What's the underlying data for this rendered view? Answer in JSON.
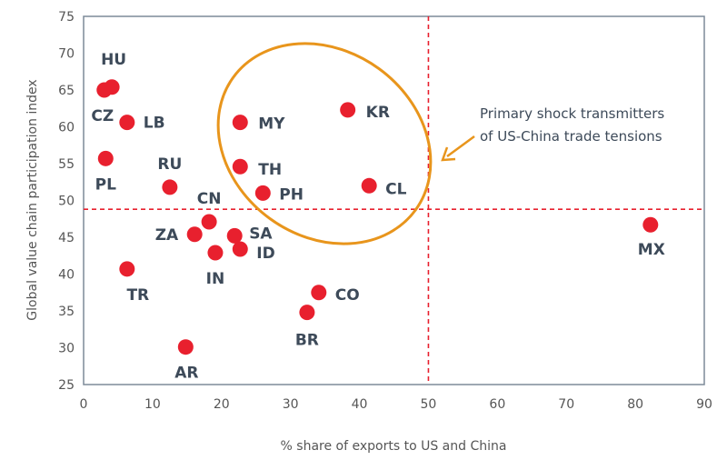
{
  "chart_data": {
    "type": "scatter",
    "title": "",
    "xlabel": "% share of exports to US and China",
    "ylabel": "Global value chain participation index",
    "xlim": [
      0,
      90
    ],
    "ylim": [
      25,
      75
    ],
    "xticks": [
      0,
      10,
      20,
      30,
      40,
      50,
      60,
      70,
      80,
      90
    ],
    "yticks": [
      25,
      30,
      35,
      40,
      45,
      50,
      55,
      60,
      65,
      70,
      75
    ],
    "grid": false,
    "point_color": "#e8202e",
    "reference_line_color": "#e8202e",
    "highlight_color": "#e8951c",
    "reference_lines": {
      "x": 50,
      "y": 48.8
    },
    "points": [
      {
        "label": "HU",
        "x": 4.1,
        "y": 65.4
      },
      {
        "label": "CZ",
        "x": 3.0,
        "y": 65.0
      },
      {
        "label": "LB",
        "x": 6.3,
        "y": 60.6
      },
      {
        "label": "PL",
        "x": 3.2,
        "y": 55.7
      },
      {
        "label": "RU",
        "x": 12.5,
        "y": 51.8
      },
      {
        "label": "CN",
        "x": 18.2,
        "y": 47.1
      },
      {
        "label": "ZA",
        "x": 16.1,
        "y": 45.4
      },
      {
        "label": "SA",
        "x": 21.9,
        "y": 45.2
      },
      {
        "label": "IN",
        "x": 19.1,
        "y": 42.9
      },
      {
        "label": "ID",
        "x": 22.7,
        "y": 43.4
      },
      {
        "label": "TR",
        "x": 6.3,
        "y": 40.7
      },
      {
        "label": "AR",
        "x": 14.8,
        "y": 30.1
      },
      {
        "label": "MY",
        "x": 22.7,
        "y": 60.6
      },
      {
        "label": "TH",
        "x": 22.7,
        "y": 54.6
      },
      {
        "label": "PH",
        "x": 26.0,
        "y": 51.0
      },
      {
        "label": "KR",
        "x": 38.3,
        "y": 62.3
      },
      {
        "label": "CL",
        "x": 41.4,
        "y": 52.0
      },
      {
        "label": "CO",
        "x": 34.1,
        "y": 37.5
      },
      {
        "label": "BR",
        "x": 32.4,
        "y": 34.8
      },
      {
        "label": "MX",
        "x": 82.2,
        "y": 46.7
      }
    ],
    "annotation": {
      "lines": [
        "Primary shock transmitters",
        "of US-China trade tensions"
      ]
    }
  }
}
